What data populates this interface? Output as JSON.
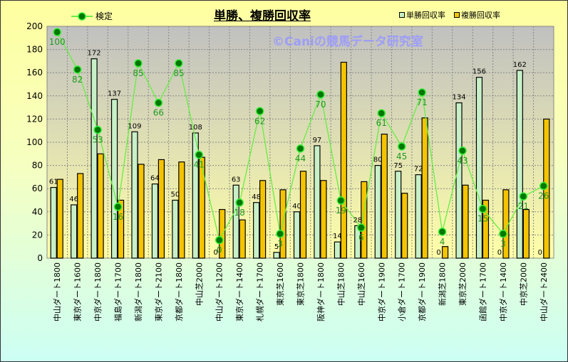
{
  "chart_data": {
    "type": "bar",
    "title": "単勝、複勝回収率",
    "watermark": "©Caniの競馬データ研究室",
    "ylim": [
      0,
      200
    ],
    "yticks": [
      0,
      20,
      40,
      60,
      80,
      100,
      120,
      140,
      160,
      180,
      200
    ],
    "grid": true,
    "legend_placement": "top",
    "categories": [
      "中山ダート1800",
      "東京ダート1600",
      "中京ダート1800",
      "福島ダート1700",
      "新潟ダート1800",
      "東京ダート2100",
      "京都ダート1800",
      "中山芝2000",
      "中山ダート1200",
      "東京ダート1400",
      "札幌ダート1700",
      "東京芝1600",
      "東京芝1800",
      "阪神ダート1800",
      "中山芝1800",
      "中山芝1600",
      "中京ダート1900",
      "小倉ダート1700",
      "京都ダート1900",
      "新潟芝1800",
      "東京芝2000",
      "函館ダート1700",
      "中京ダート1400",
      "中京芝2000",
      "中山ダート2400"
    ],
    "series": [
      {
        "name": "単勝回収率",
        "type": "bar",
        "color": "#C8F0C8",
        "values": [
          61,
          46,
          172,
          137,
          109,
          64,
          50,
          108,
          0,
          63,
          48,
          5,
          40,
          97,
          14,
          28,
          80,
          75,
          72,
          0,
          134,
          156,
          0,
          162,
          0
        ]
      },
      {
        "name": "複勝回収率",
        "type": "bar",
        "color": "#F5C400",
        "values": [
          68,
          73,
          90,
          50,
          81,
          85,
          83,
          87,
          42,
          33,
          67,
          59,
          75,
          67,
          169,
          66,
          107,
          56,
          121,
          10,
          63,
          50,
          59,
          42,
          120
        ]
      },
      {
        "name": "検定",
        "type": "line",
        "axis": "secondary",
        "color": "#66EE44",
        "values": [
          100,
          82,
          53,
          16,
          85,
          66,
          85,
          41,
          0,
          18,
          62,
          3,
          44,
          70,
          19,
          6,
          61,
          45,
          71,
          4,
          43,
          15,
          3,
          21,
          26
        ]
      }
    ],
    "secondary_ylim": [
      -8.7,
      102.8
    ]
  }
}
